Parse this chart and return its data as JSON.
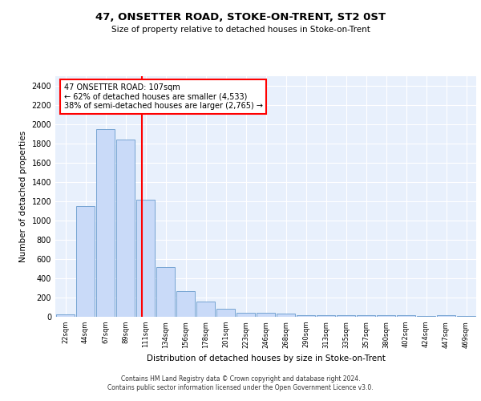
{
  "title": "47, ONSETTER ROAD, STOKE-ON-TRENT, ST2 0ST",
  "subtitle": "Size of property relative to detached houses in Stoke-on-Trent",
  "xlabel": "Distribution of detached houses by size in Stoke-on-Trent",
  "ylabel": "Number of detached properties",
  "bar_labels": [
    "22sqm",
    "44sqm",
    "67sqm",
    "89sqm",
    "111sqm",
    "134sqm",
    "156sqm",
    "178sqm",
    "201sqm",
    "223sqm",
    "246sqm",
    "268sqm",
    "290sqm",
    "313sqm",
    "335sqm",
    "357sqm",
    "380sqm",
    "402sqm",
    "424sqm",
    "447sqm",
    "469sqm"
  ],
  "bar_values": [
    28,
    1150,
    1950,
    1840,
    1220,
    515,
    265,
    155,
    85,
    45,
    40,
    35,
    18,
    18,
    18,
    18,
    18,
    18,
    5,
    18,
    5
  ],
  "bar_color": "#c9daf8",
  "bar_edge_color": "#6699cc",
  "vline_color": "red",
  "annotation_text": "47 ONSETTER ROAD: 107sqm\n← 62% of detached houses are smaller (4,533)\n38% of semi-detached houses are larger (2,765) →",
  "annotation_box_color": "white",
  "annotation_box_edgecolor": "red",
  "ylim": [
    0,
    2500
  ],
  "yticks": [
    0,
    200,
    400,
    600,
    800,
    1000,
    1200,
    1400,
    1600,
    1800,
    2000,
    2200,
    2400
  ],
  "bg_color": "#e8f0fc",
  "grid_color": "white",
  "footer_line1": "Contains HM Land Registry data © Crown copyright and database right 2024.",
  "footer_line2": "Contains public sector information licensed under the Open Government Licence v3.0."
}
